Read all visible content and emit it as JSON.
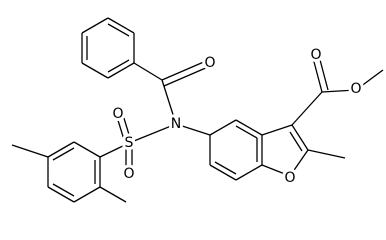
{
  "atoms": [
    {
      "label": "O"
    },
    {
      "label": "N"
    },
    {
      "label": "S"
    },
    {
      "label": "O"
    },
    {
      "label": "O"
    },
    {
      "label": "O"
    },
    {
      "label": "O"
    },
    {
      "label": "O"
    }
  ]
}
